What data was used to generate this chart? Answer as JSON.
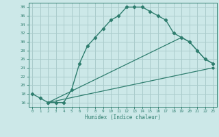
{
  "xlabel": "Humidex (Indice chaleur)",
  "bg_color": "#cce8e8",
  "grid_color": "#aacccc",
  "line_color": "#2e7d6e",
  "line1_x": [
    0,
    1,
    2,
    3,
    4,
    5,
    6,
    7,
    8,
    9,
    10,
    11,
    12,
    13,
    14,
    15,
    16,
    17,
    18,
    19,
    20,
    21,
    22,
    23
  ],
  "line1_y": [
    18,
    17,
    16,
    16,
    16,
    19,
    25,
    29,
    31,
    33,
    35,
    36,
    38,
    38,
    38,
    37,
    36,
    35,
    32,
    31,
    30,
    28,
    26,
    25
  ],
  "line2_x": [
    2,
    23
  ],
  "line2_y": [
    16,
    24
  ],
  "line3_x": [
    2,
    19,
    20,
    21,
    22,
    23
  ],
  "line3_y": [
    16,
    31,
    30,
    28,
    26,
    25
  ],
  "ylim": [
    15,
    39
  ],
  "yticks": [
    16,
    18,
    20,
    22,
    24,
    26,
    28,
    30,
    32,
    34,
    36,
    38
  ],
  "xlim": [
    -0.5,
    23.5
  ],
  "xticks": [
    0,
    1,
    2,
    3,
    4,
    5,
    6,
    7,
    8,
    9,
    10,
    11,
    12,
    13,
    14,
    15,
    16,
    17,
    18,
    19,
    20,
    21,
    22,
    23
  ]
}
